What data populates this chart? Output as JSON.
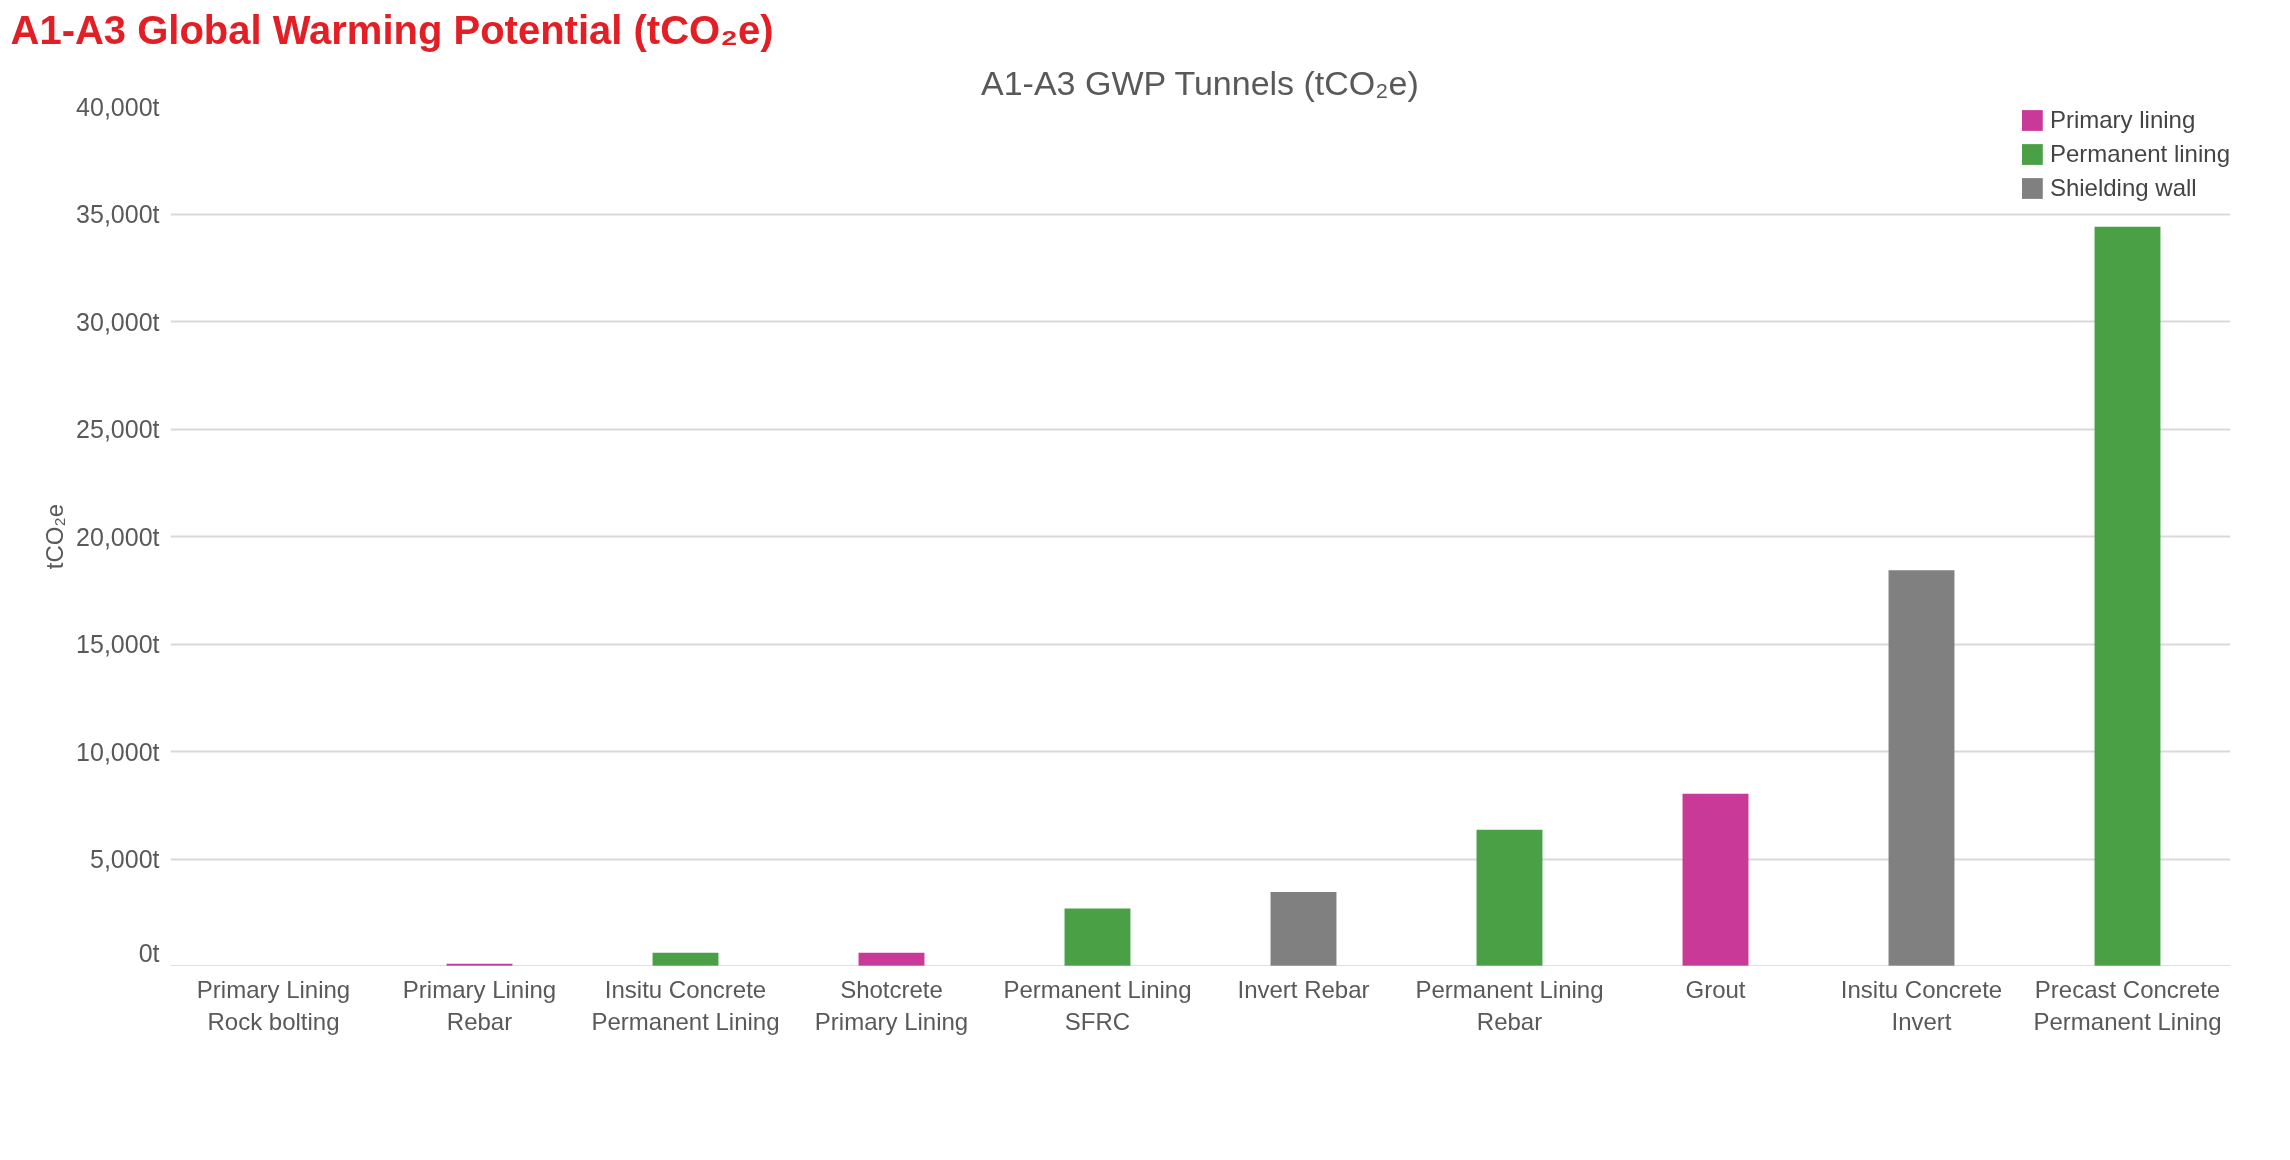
{
  "chart_data": {
    "type": "bar",
    "title": "A1-A3 Global Warming Potential (tCO₂e)",
    "subtitle": "A1-A3 GWP Tunnels (tCO₂e)",
    "ylabel": "tCO₂e",
    "categories": [
      "Primary Lining Rock bolting",
      "Primary Lining Rebar",
      "Insitu Concrete Permanent Lining",
      "Shotcrete Primary Lining",
      "Permanent Lining SFRC",
      "Invert Rebar",
      "Permanent Lining Rebar",
      "Grout",
      "Insitu Concrete Invert",
      "Precast Concrete Permanent Lining"
    ],
    "series": [
      {
        "name": "Primary lining",
        "color": "#c93a98",
        "values": [
          null,
          130,
          null,
          640,
          null,
          null,
          null,
          8030,
          null,
          null
        ]
      },
      {
        "name": "Permanent lining",
        "color": "#4aa044",
        "values": [
          null,
          null,
          640,
          null,
          2700,
          null,
          6360,
          null,
          null,
          34410
        ]
      },
      {
        "name": "Shielding wall",
        "color": "#808080",
        "values": [
          null,
          null,
          null,
          null,
          null,
          3470,
          null,
          null,
          18430,
          null
        ]
      }
    ],
    "ylim": [
      0,
      40000
    ],
    "yticks": [
      {
        "value": 0,
        "label": "0t"
      },
      {
        "value": 5000,
        "label": "5,000t"
      },
      {
        "value": 10000,
        "label": "10,000t"
      },
      {
        "value": 15000,
        "label": "15,000t"
      },
      {
        "value": 20000,
        "label": "20,000t"
      },
      {
        "value": 25000,
        "label": "25,000t"
      },
      {
        "value": 30000,
        "label": "30,000t"
      },
      {
        "value": 35000,
        "label": "35,000t"
      },
      {
        "value": 40000,
        "label": "40,000t"
      }
    ],
    "grid": "y",
    "legend": "top right"
  }
}
